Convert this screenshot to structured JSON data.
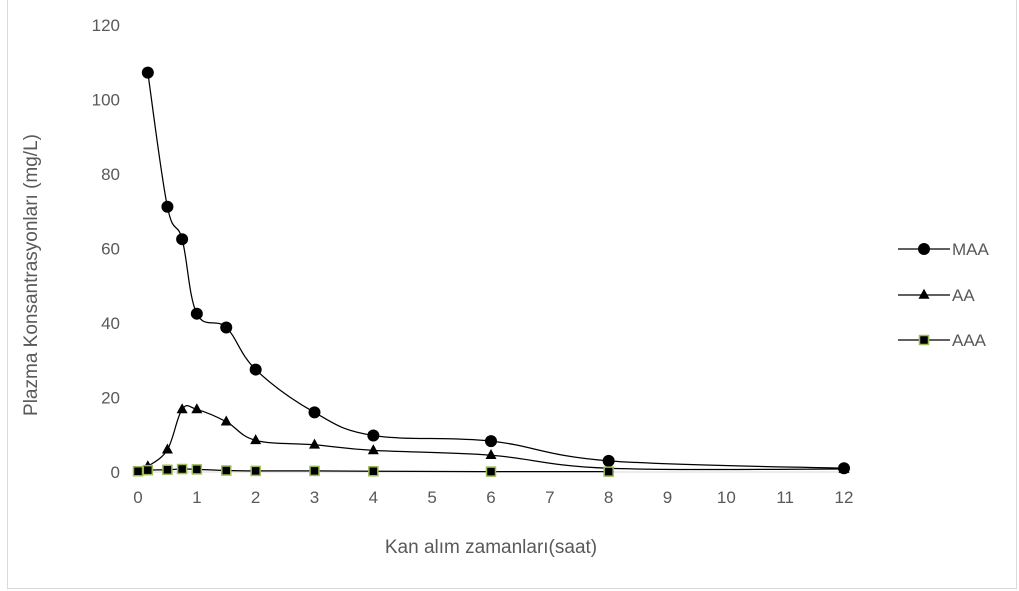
{
  "chart_data": {
    "type": "scatter",
    "title": "",
    "xlabel": "Kan alım zamanları(saat)",
    "ylabel": "Plazma Konsantrasyonları (mg/L)",
    "xlim": [
      0,
      12
    ],
    "ylim": [
      0,
      120
    ],
    "xticks": [
      0,
      1,
      2,
      3,
      4,
      5,
      6,
      7,
      8,
      9,
      10,
      11,
      12
    ],
    "yticks": [
      0,
      20,
      40,
      60,
      80,
      100,
      120
    ],
    "grid": false,
    "legend_position": "right",
    "series": [
      {
        "name": "MAA",
        "marker": "circle",
        "color": "#000000",
        "x": [
          0.167,
          0.5,
          0.75,
          1,
          1.5,
          2,
          3,
          4,
          6,
          8,
          12
        ],
        "y": [
          107.2,
          71.2,
          62.5,
          42.5,
          38.8,
          27.5,
          16.0,
          9.8,
          8.3,
          3.0,
          1.0
        ]
      },
      {
        "name": "AA",
        "marker": "triangle",
        "color": "#000000",
        "x": [
          0.167,
          0.5,
          0.75,
          1,
          1.5,
          2,
          3,
          4,
          6,
          8,
          12
        ],
        "y": [
          1.5,
          6.0,
          16.8,
          16.8,
          13.5,
          8.5,
          7.3,
          5.8,
          4.5,
          1.0,
          0.8
        ]
      },
      {
        "name": "AAA",
        "marker": "square",
        "color": "#000000",
        "fill": "#000000",
        "edge": "#9bbb59",
        "x": [
          0,
          0.167,
          0.5,
          0.75,
          1,
          1.5,
          2,
          3,
          4,
          6,
          8
        ],
        "y": [
          0.2,
          0.5,
          0.6,
          0.8,
          0.7,
          0.4,
          0.3,
          0.3,
          0.2,
          0.1,
          0.1
        ]
      }
    ]
  }
}
